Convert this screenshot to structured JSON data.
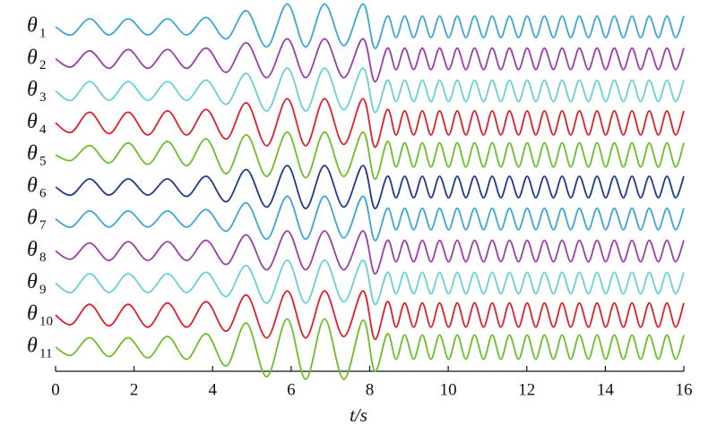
{
  "chart_data": {
    "type": "line",
    "xlabel": "t/s",
    "xlim": [
      0,
      16
    ],
    "xticks": [
      0,
      2,
      4,
      6,
      8,
      10,
      12,
      14,
      16
    ],
    "x": [
      0,
      0.4,
      0.87,
      1.36,
      1.85,
      2.35,
      2.85,
      3.34,
      3.84,
      4.35,
      4.86,
      5.38,
      5.9,
      6.37,
      6.85,
      7.34,
      7.83,
      8.13,
      8.45,
      8.67,
      8.89,
      9.12,
      9.34,
      9.56,
      9.78,
      10.01,
      10.23,
      10.45,
      10.67,
      10.9,
      11.12,
      11.34,
      11.56,
      11.79,
      12.01,
      12.23,
      12.45,
      12.68,
      12.9,
      13.12,
      13.34,
      13.57,
      13.79,
      14.01,
      14.23,
      14.46,
      14.68,
      14.9,
      15.12,
      15.35,
      15.57,
      15.79,
      16.0
    ],
    "series": [
      {
        "name": "θ",
        "subscript": "1",
        "color": "#3ea6d6",
        "values": [
          0,
          -0.3,
          0.3,
          -0.3,
          0.3,
          -0.3,
          0.3,
          -0.3,
          0.35,
          -0.45,
          0.6,
          -0.75,
          0.85,
          -0.75,
          0.85,
          -0.7,
          0.85,
          -0.8,
          0.4,
          -0.4,
          0.4,
          -0.4,
          0.4,
          -0.4,
          0.4,
          -0.4,
          0.4,
          -0.4,
          0.4,
          -0.4,
          0.4,
          -0.4,
          0.4,
          -0.4,
          0.4,
          -0.4,
          0.4,
          -0.4,
          0.4,
          -0.4,
          0.4,
          -0.4,
          0.4,
          -0.4,
          0.4,
          -0.4,
          0.4,
          -0.4,
          0.4,
          -0.4,
          0.4,
          -0.4,
          0.4
        ]
      },
      {
        "name": "θ",
        "subscript": "2",
        "color": "#9b3fa8",
        "values": [
          0,
          -0.3,
          0.3,
          -0.35,
          0.35,
          -0.35,
          0.35,
          -0.35,
          0.4,
          -0.5,
          0.6,
          -0.7,
          0.75,
          -0.7,
          0.75,
          -0.7,
          0.75,
          -0.85,
          0.4,
          -0.4,
          0.4,
          -0.4,
          0.4,
          -0.4,
          0.4,
          -0.4,
          0.4,
          -0.4,
          0.4,
          -0.4,
          0.4,
          -0.4,
          0.4,
          -0.4,
          0.4,
          -0.4,
          0.4,
          -0.4,
          0.4,
          -0.4,
          0.4,
          -0.4,
          0.4,
          -0.4,
          0.4,
          -0.4,
          0.4,
          -0.4,
          0.4,
          -0.4,
          0.4,
          -0.4,
          0.4
        ]
      },
      {
        "name": "θ",
        "subscript": "3",
        "color": "#6ccfd6",
        "values": [
          0,
          -0.35,
          0.35,
          -0.35,
          0.35,
          -0.35,
          0.35,
          -0.35,
          0.4,
          -0.5,
          0.65,
          -0.75,
          0.85,
          -0.75,
          0.85,
          -0.7,
          0.85,
          -0.8,
          0.4,
          -0.4,
          0.4,
          -0.4,
          0.4,
          -0.4,
          0.4,
          -0.4,
          0.4,
          -0.4,
          0.4,
          -0.4,
          0.4,
          -0.4,
          0.4,
          -0.4,
          0.4,
          -0.4,
          0.4,
          -0.4,
          0.4,
          -0.4,
          0.4,
          -0.4,
          0.4,
          -0.4,
          0.4,
          -0.4,
          0.4,
          -0.4,
          0.4,
          -0.4,
          0.4,
          -0.4,
          0.4
        ]
      },
      {
        "name": "θ",
        "subscript": "4",
        "color": "#e0202a",
        "values": [
          0,
          -0.35,
          0.4,
          -0.4,
          0.4,
          -0.45,
          0.45,
          -0.45,
          0.5,
          -0.6,
          0.75,
          -0.85,
          0.9,
          -0.85,
          0.9,
          -0.8,
          0.9,
          -0.9,
          0.5,
          -0.45,
          0.45,
          -0.45,
          0.45,
          -0.45,
          0.45,
          -0.45,
          0.45,
          -0.45,
          0.45,
          -0.45,
          0.45,
          -0.45,
          0.45,
          -0.45,
          0.45,
          -0.45,
          0.45,
          -0.45,
          0.45,
          -0.45,
          0.45,
          -0.45,
          0.45,
          -0.45,
          0.45,
          -0.45,
          0.45,
          -0.45,
          0.45,
          -0.45,
          0.45,
          -0.45,
          0.45
        ]
      },
      {
        "name": "θ",
        "subscript": "5",
        "color": "#6cbf2a",
        "values": [
          0,
          -0.2,
          0.35,
          -0.3,
          0.45,
          -0.35,
          0.5,
          -0.4,
          0.6,
          -0.7,
          0.75,
          -0.8,
          0.85,
          -0.85,
          0.85,
          -0.8,
          0.85,
          -0.9,
          0.5,
          -0.45,
          0.45,
          -0.45,
          0.45,
          -0.45,
          0.45,
          -0.45,
          0.45,
          -0.45,
          0.45,
          -0.45,
          0.45,
          -0.45,
          0.45,
          -0.45,
          0.45,
          -0.45,
          0.45,
          -0.45,
          0.45,
          -0.45,
          0.45,
          -0.45,
          0.45,
          -0.45,
          0.45,
          -0.45,
          0.45,
          -0.45,
          0.45,
          -0.45,
          0.45,
          -0.45,
          0.45
        ]
      },
      {
        "name": "θ",
        "subscript": "6",
        "color": "#1e3a8c",
        "values": [
          0,
          -0.3,
          0.3,
          -0.3,
          0.3,
          -0.3,
          0.3,
          -0.35,
          0.4,
          -0.55,
          0.65,
          -0.75,
          0.8,
          -0.8,
          0.8,
          -0.75,
          0.8,
          -0.8,
          0.4,
          -0.4,
          0.4,
          -0.4,
          0.4,
          -0.4,
          0.4,
          -0.4,
          0.4,
          -0.4,
          0.4,
          -0.4,
          0.4,
          -0.4,
          0.4,
          -0.4,
          0.4,
          -0.4,
          0.4,
          -0.4,
          0.4,
          -0.4,
          0.4,
          -0.4,
          0.4,
          -0.4,
          0.4,
          -0.4,
          0.4,
          -0.4,
          0.4,
          -0.4,
          0.4,
          -0.4,
          0.4
        ]
      },
      {
        "name": "θ",
        "subscript": "7",
        "color": "#3ea6d6",
        "values": [
          0,
          -0.3,
          0.3,
          -0.3,
          0.3,
          -0.3,
          0.3,
          -0.3,
          0.35,
          -0.45,
          0.6,
          -0.75,
          0.85,
          -0.75,
          0.85,
          -0.7,
          0.85,
          -0.8,
          0.4,
          -0.4,
          0.4,
          -0.4,
          0.4,
          -0.4,
          0.4,
          -0.4,
          0.4,
          -0.4,
          0.4,
          -0.4,
          0.4,
          -0.4,
          0.4,
          -0.4,
          0.4,
          -0.4,
          0.4,
          -0.4,
          0.4,
          -0.4,
          0.4,
          -0.4,
          0.4,
          -0.4,
          0.4,
          -0.4,
          0.4,
          -0.4,
          0.4,
          -0.4,
          0.4,
          -0.4,
          0.4
        ]
      },
      {
        "name": "θ",
        "subscript": "8",
        "color": "#9b3fa8",
        "values": [
          0,
          -0.3,
          0.3,
          -0.35,
          0.35,
          -0.35,
          0.35,
          -0.35,
          0.4,
          -0.5,
          0.6,
          -0.7,
          0.75,
          -0.7,
          0.75,
          -0.7,
          0.75,
          -0.85,
          0.4,
          -0.4,
          0.4,
          -0.4,
          0.4,
          -0.4,
          0.4,
          -0.4,
          0.4,
          -0.4,
          0.4,
          -0.4,
          0.4,
          -0.4,
          0.4,
          -0.4,
          0.4,
          -0.4,
          0.4,
          -0.4,
          0.4,
          -0.4,
          0.4,
          -0.4,
          0.4,
          -0.4,
          0.4,
          -0.4,
          0.4,
          -0.4,
          0.4,
          -0.4,
          0.4,
          -0.4,
          0.4
        ]
      },
      {
        "name": "θ",
        "subscript": "9",
        "color": "#6ccfd6",
        "values": [
          0,
          -0.35,
          0.35,
          -0.35,
          0.35,
          -0.35,
          0.35,
          -0.35,
          0.4,
          -0.5,
          0.65,
          -0.75,
          0.85,
          -0.75,
          0.85,
          -0.7,
          0.85,
          -0.8,
          0.4,
          -0.4,
          0.4,
          -0.4,
          0.4,
          -0.4,
          0.4,
          -0.4,
          0.4,
          -0.4,
          0.4,
          -0.4,
          0.4,
          -0.4,
          0.4,
          -0.4,
          0.4,
          -0.4,
          0.4,
          -0.4,
          0.4,
          -0.4,
          0.4,
          -0.4,
          0.4,
          -0.4,
          0.4,
          -0.4,
          0.4,
          -0.4,
          0.4,
          -0.4,
          0.4,
          -0.4,
          0.4
        ]
      },
      {
        "name": "θ",
        "subscript": "10",
        "color": "#e0202a",
        "values": [
          0,
          -0.35,
          0.4,
          -0.4,
          0.4,
          -0.45,
          0.45,
          -0.45,
          0.5,
          -0.6,
          0.75,
          -0.85,
          0.9,
          -0.85,
          0.9,
          -0.8,
          0.9,
          -0.9,
          0.5,
          -0.45,
          0.45,
          -0.45,
          0.45,
          -0.45,
          0.45,
          -0.45,
          0.45,
          -0.45,
          0.45,
          -0.45,
          0.45,
          -0.45,
          0.45,
          -0.45,
          0.45,
          -0.45,
          0.45,
          -0.45,
          0.45,
          -0.45,
          0.45,
          -0.45,
          0.45,
          -0.45,
          0.45,
          -0.45,
          0.45,
          -0.45,
          0.45,
          -0.45,
          0.45,
          -0.45,
          0.45
        ]
      },
      {
        "name": "θ",
        "subscript": "11",
        "color": "#6cbf2a",
        "values": [
          0,
          -0.3,
          0.35,
          -0.35,
          0.35,
          -0.4,
          0.4,
          -0.45,
          0.5,
          -0.7,
          0.9,
          -1.1,
          1.05,
          -1.2,
          1.05,
          -1.2,
          1.0,
          -0.9,
          0.5,
          -0.45,
          0.45,
          -0.45,
          0.45,
          -0.45,
          0.45,
          -0.45,
          0.45,
          -0.45,
          0.45,
          -0.45,
          0.45,
          -0.45,
          0.45,
          -0.45,
          0.45,
          -0.45,
          0.45,
          -0.45,
          0.45,
          -0.45,
          0.45,
          -0.45,
          0.45,
          -0.45,
          0.45,
          -0.45,
          0.45,
          -0.45,
          0.45,
          -0.45,
          0.45,
          -0.45,
          0.45
        ]
      }
    ]
  }
}
